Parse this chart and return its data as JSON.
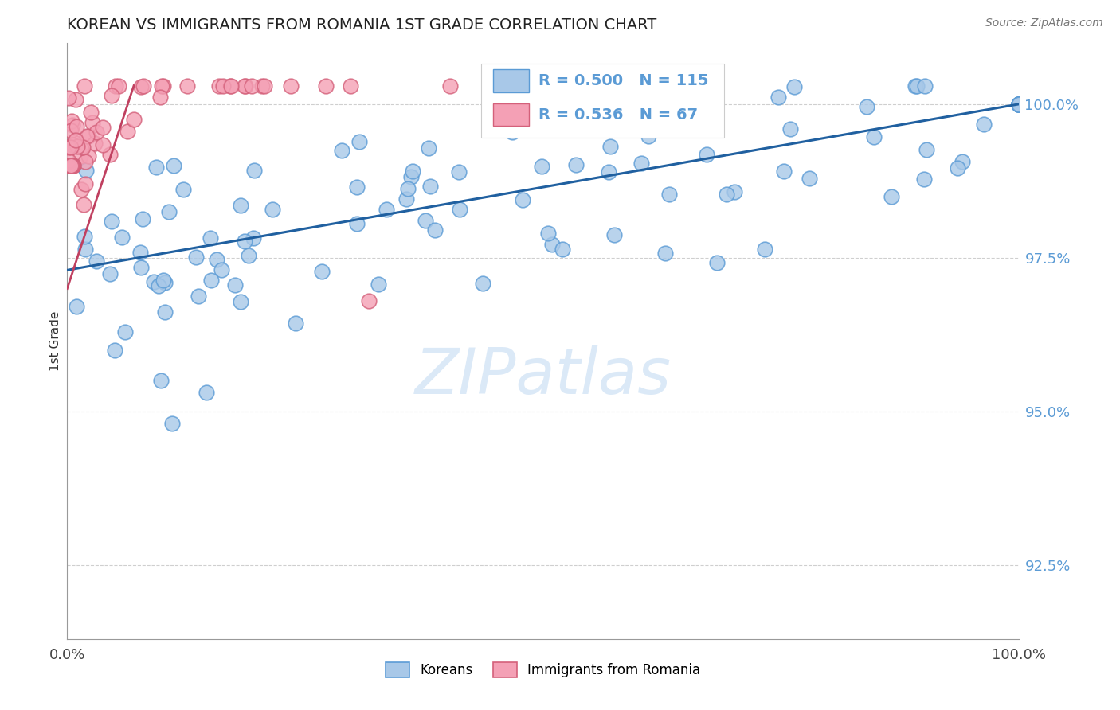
{
  "title": "KOREAN VS IMMIGRANTS FROM ROMANIA 1ST GRADE CORRELATION CHART",
  "source": "Source: ZipAtlas.com",
  "ylabel": "1st Grade",
  "legend_korean_R": "0.500",
  "legend_korean_N": "115",
  "legend_romania_R": "0.536",
  "legend_romania_N": "67",
  "legend_labels": [
    "Koreans",
    "Immigrants from Romania"
  ],
  "ytick_values": [
    100.0,
    97.5,
    95.0,
    92.5
  ],
  "xlim": [
    0.0,
    100.0
  ],
  "ylim": [
    91.3,
    101.0
  ],
  "blue_color": "#a8c8e8",
  "pink_color": "#f4a0b5",
  "blue_edge": "#5b9bd5",
  "pink_edge": "#d4607a",
  "trendline_blue": "#2060a0",
  "trendline_pink": "#c04060",
  "watermark_color": "#b8d4f0",
  "background": "#ffffff",
  "grid_color": "#bbbbbb",
  "title_color": "#222222",
  "right_label_color": "#5b9bd5",
  "source_color": "#777777"
}
